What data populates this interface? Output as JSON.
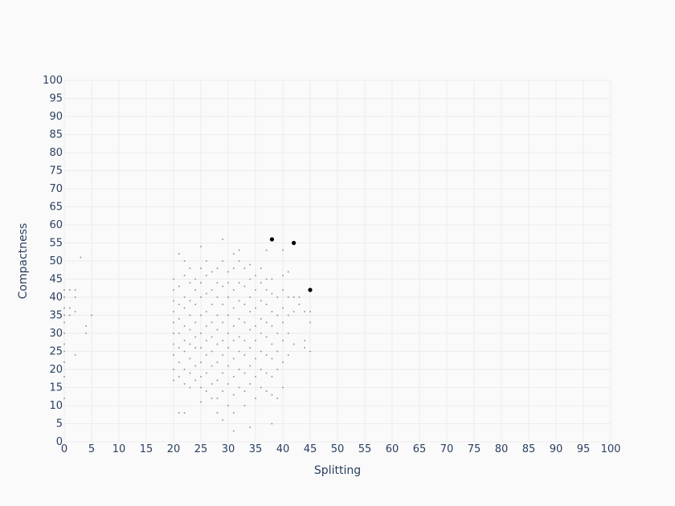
{
  "chart_data": {
    "type": "scatter",
    "title": "",
    "xlabel": "Splitting",
    "ylabel": "Compactness",
    "xlim": [
      0,
      100
    ],
    "ylim": [
      0,
      100
    ],
    "xticks": [
      0,
      5,
      10,
      15,
      20,
      25,
      30,
      35,
      40,
      45,
      50,
      55,
      60,
      65,
      70,
      75,
      80,
      85,
      90,
      95,
      100
    ],
    "yticks": [
      0,
      5,
      10,
      15,
      20,
      25,
      30,
      35,
      40,
      45,
      50,
      55,
      60,
      65,
      70,
      75,
      80,
      85,
      90,
      95,
      100
    ],
    "grid": true,
    "colors": {
      "background": "#fafafa",
      "grid": "#ececec",
      "text": "#2a3f5f",
      "points": "#9a9a9a",
      "highlight": "#000000"
    },
    "series": [
      {
        "values": [
          [
            0,
            12
          ],
          [
            0,
            18
          ],
          [
            0,
            22
          ],
          [
            0,
            25
          ],
          [
            0,
            27
          ],
          [
            0,
            30
          ],
          [
            0,
            33
          ],
          [
            0,
            35
          ],
          [
            0,
            37
          ],
          [
            0,
            40
          ],
          [
            0,
            42
          ],
          [
            1,
            35
          ],
          [
            1,
            37
          ],
          [
            1,
            42
          ],
          [
            2,
            24
          ],
          [
            2,
            36
          ],
          [
            2,
            40
          ],
          [
            2,
            42
          ],
          [
            3,
            51
          ],
          [
            4,
            30
          ],
          [
            4,
            32
          ],
          [
            5,
            35
          ],
          [
            20,
            17
          ],
          [
            20,
            20
          ],
          [
            20,
            24
          ],
          [
            20,
            27
          ],
          [
            20,
            30
          ],
          [
            20,
            33
          ],
          [
            20,
            36
          ],
          [
            20,
            39
          ],
          [
            20,
            42
          ],
          [
            20,
            45
          ],
          [
            21,
            8
          ],
          [
            21,
            18
          ],
          [
            21,
            22
          ],
          [
            21,
            26
          ],
          [
            21,
            30
          ],
          [
            21,
            34
          ],
          [
            21,
            38
          ],
          [
            21,
            43
          ],
          [
            21,
            52
          ],
          [
            22,
            8
          ],
          [
            22,
            16
          ],
          [
            22,
            20
          ],
          [
            22,
            25
          ],
          [
            22,
            28
          ],
          [
            22,
            32
          ],
          [
            22,
            37
          ],
          [
            22,
            40
          ],
          [
            22,
            46
          ],
          [
            22,
            50
          ],
          [
            23,
            15
          ],
          [
            23,
            19
          ],
          [
            23,
            23
          ],
          [
            23,
            27
          ],
          [
            23,
            31
          ],
          [
            23,
            35
          ],
          [
            23,
            39
          ],
          [
            23,
            44
          ],
          [
            23,
            48
          ],
          [
            24,
            17
          ],
          [
            24,
            21
          ],
          [
            24,
            26
          ],
          [
            24,
            29
          ],
          [
            24,
            33
          ],
          [
            24,
            38
          ],
          [
            24,
            42
          ],
          [
            24,
            45
          ],
          [
            25,
            11
          ],
          [
            25,
            15
          ],
          [
            25,
            18
          ],
          [
            25,
            22
          ],
          [
            25,
            26
          ],
          [
            25,
            30
          ],
          [
            25,
            35
          ],
          [
            25,
            40
          ],
          [
            25,
            44
          ],
          [
            25,
            48
          ],
          [
            25,
            54
          ],
          [
            26,
            14
          ],
          [
            26,
            19
          ],
          [
            26,
            24
          ],
          [
            26,
            28
          ],
          [
            26,
            32
          ],
          [
            26,
            36
          ],
          [
            26,
            41
          ],
          [
            26,
            46
          ],
          [
            26,
            50
          ],
          [
            27,
            12
          ],
          [
            27,
            16
          ],
          [
            27,
            21
          ],
          [
            27,
            25
          ],
          [
            27,
            29
          ],
          [
            27,
            33
          ],
          [
            27,
            38
          ],
          [
            27,
            42
          ],
          [
            27,
            47
          ],
          [
            28,
            8
          ],
          [
            28,
            12
          ],
          [
            28,
            17
          ],
          [
            28,
            22
          ],
          [
            28,
            27
          ],
          [
            28,
            31
          ],
          [
            28,
            35
          ],
          [
            28,
            40
          ],
          [
            28,
            44
          ],
          [
            28,
            48
          ],
          [
            29,
            6
          ],
          [
            29,
            14
          ],
          [
            29,
            19
          ],
          [
            29,
            24
          ],
          [
            29,
            28
          ],
          [
            29,
            33
          ],
          [
            29,
            38
          ],
          [
            29,
            43
          ],
          [
            29,
            50
          ],
          [
            29,
            56
          ],
          [
            30,
            10
          ],
          [
            30,
            16
          ],
          [
            30,
            21
          ],
          [
            30,
            26
          ],
          [
            30,
            30
          ],
          [
            30,
            35
          ],
          [
            30,
            40
          ],
          [
            30,
            44
          ],
          [
            30,
            47
          ],
          [
            31,
            3
          ],
          [
            31,
            8
          ],
          [
            31,
            13
          ],
          [
            31,
            18
          ],
          [
            31,
            23
          ],
          [
            31,
            28
          ],
          [
            31,
            32
          ],
          [
            31,
            37
          ],
          [
            31,
            42
          ],
          [
            31,
            48
          ],
          [
            31,
            52
          ],
          [
            32,
            15
          ],
          [
            32,
            20
          ],
          [
            32,
            25
          ],
          [
            32,
            29
          ],
          [
            32,
            34
          ],
          [
            32,
            39
          ],
          [
            32,
            44
          ],
          [
            32,
            50
          ],
          [
            32,
            53
          ],
          [
            33,
            10
          ],
          [
            33,
            14
          ],
          [
            33,
            19
          ],
          [
            33,
            24
          ],
          [
            33,
            28
          ],
          [
            33,
            33
          ],
          [
            33,
            38
          ],
          [
            33,
            43
          ],
          [
            33,
            48
          ],
          [
            34,
            4
          ],
          [
            34,
            16
          ],
          [
            34,
            21
          ],
          [
            34,
            26
          ],
          [
            34,
            31
          ],
          [
            34,
            36
          ],
          [
            34,
            40
          ],
          [
            34,
            45
          ],
          [
            34,
            49
          ],
          [
            35,
            12
          ],
          [
            35,
            18
          ],
          [
            35,
            23
          ],
          [
            35,
            28
          ],
          [
            35,
            32
          ],
          [
            35,
            37
          ],
          [
            35,
            42
          ],
          [
            35,
            46
          ],
          [
            36,
            15
          ],
          [
            36,
            20
          ],
          [
            36,
            25
          ],
          [
            36,
            30
          ],
          [
            36,
            34
          ],
          [
            36,
            39
          ],
          [
            36,
            44
          ],
          [
            36,
            48
          ],
          [
            37,
            14
          ],
          [
            37,
            19
          ],
          [
            37,
            24
          ],
          [
            37,
            29
          ],
          [
            37,
            33
          ],
          [
            37,
            38
          ],
          [
            37,
            42
          ],
          [
            37,
            45
          ],
          [
            37,
            53
          ],
          [
            38,
            5
          ],
          [
            38,
            13
          ],
          [
            38,
            18
          ],
          [
            38,
            23
          ],
          [
            38,
            27
          ],
          [
            38,
            32
          ],
          [
            38,
            36
          ],
          [
            38,
            41
          ],
          [
            38,
            45
          ],
          [
            39,
            12
          ],
          [
            39,
            20
          ],
          [
            39,
            25
          ],
          [
            39,
            30
          ],
          [
            39,
            35
          ],
          [
            39,
            40
          ],
          [
            40,
            15
          ],
          [
            40,
            22
          ],
          [
            40,
            28
          ],
          [
            40,
            33
          ],
          [
            40,
            37
          ],
          [
            40,
            42
          ],
          [
            40,
            46
          ],
          [
            40,
            53
          ],
          [
            41,
            24
          ],
          [
            41,
            30
          ],
          [
            41,
            35
          ],
          [
            41,
            40
          ],
          [
            41,
            47
          ],
          [
            42,
            27
          ],
          [
            42,
            36
          ],
          [
            42,
            40
          ],
          [
            43,
            38
          ],
          [
            43,
            40
          ],
          [
            44,
            26
          ],
          [
            44,
            28
          ],
          [
            44,
            36
          ],
          [
            45,
            25
          ],
          [
            45,
            33
          ],
          [
            45,
            36
          ]
        ]
      },
      {
        "values": [
          [
            38,
            56
          ],
          [
            42,
            55
          ],
          [
            45,
            42
          ]
        ]
      }
    ]
  }
}
